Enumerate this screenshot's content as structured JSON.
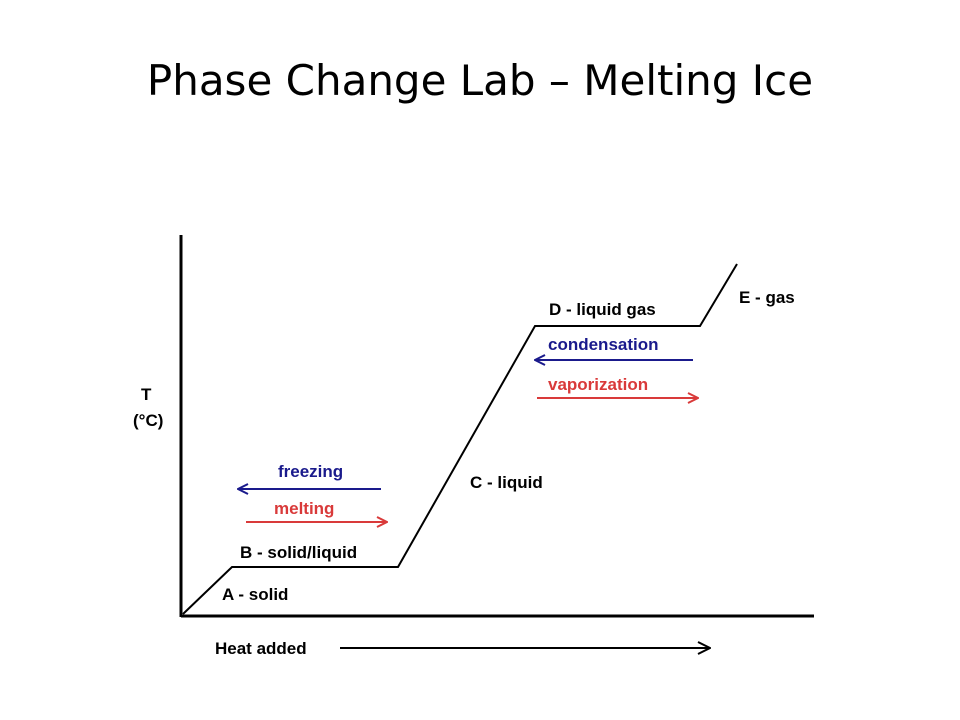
{
  "slide": {
    "title": "Phase Change Lab – Melting Ice"
  },
  "diagram": {
    "y_axis_label_line1": "T",
    "y_axis_label_line2": "(°C)",
    "x_axis_label": "Heat added",
    "segments": {
      "a": "A - solid",
      "b": "B - solid/liquid",
      "c": "C - liquid",
      "d": "D - liquid gas",
      "e": "E - gas"
    },
    "transitions": {
      "freezing": "freezing",
      "melting": "melting",
      "condensation": "condensation",
      "vaporization": "vaporization"
    },
    "colors": {
      "line": "#000000",
      "cooling_arrow": "#1a1a8c",
      "heating_arrow": "#d93a3a"
    }
  }
}
